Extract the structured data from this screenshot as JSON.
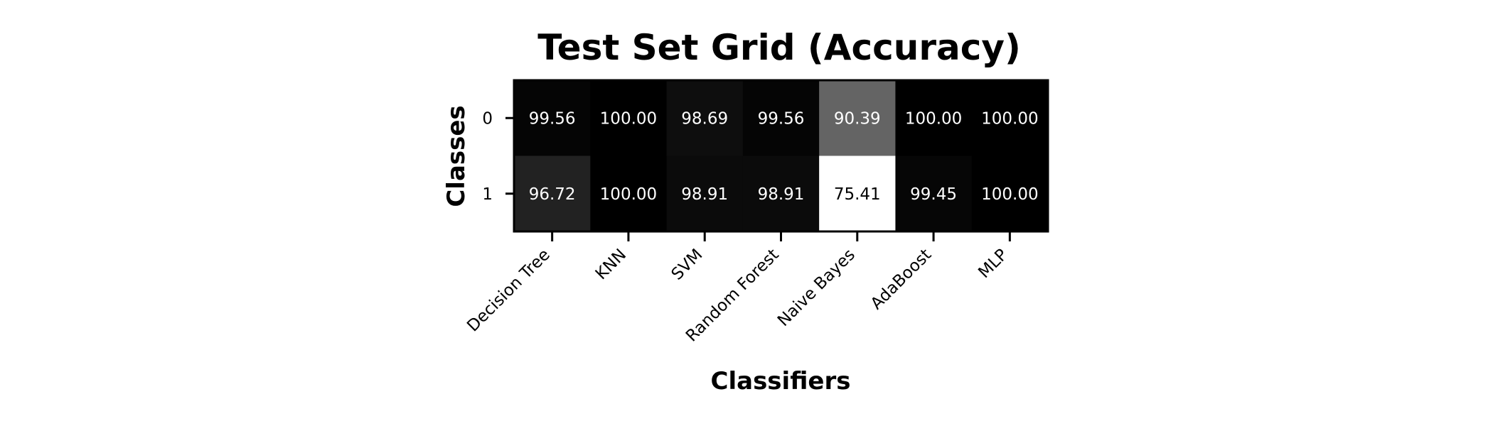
{
  "chart_data": {
    "type": "heatmap",
    "title": "Test Set Grid (Accuracy)",
    "xlabel": "Classifiers",
    "ylabel": "Classes",
    "x_categories": [
      "Decision Tree",
      "KNN",
      "SVM",
      "Random Forest",
      "Naive Bayes",
      "AdaBoost",
      "MLP"
    ],
    "y_categories": [
      "0",
      "1"
    ],
    "values": [
      [
        99.56,
        100.0,
        98.69,
        99.56,
        90.39,
        100.0,
        100.0
      ],
      [
        96.72,
        100.0,
        98.91,
        98.91,
        75.41,
        99.45,
        100.0
      ]
    ],
    "value_labels": [
      [
        "99.56",
        "100.00",
        "98.69",
        "99.56",
        "90.39",
        "100.00",
        "100.00"
      ],
      [
        "96.72",
        "100.00",
        "98.91",
        "98.91",
        "75.41",
        "99.45",
        "100.00"
      ]
    ],
    "colormap": "gray_r",
    "vmin": 75.41,
    "vmax": 100.0,
    "grid": false
  }
}
